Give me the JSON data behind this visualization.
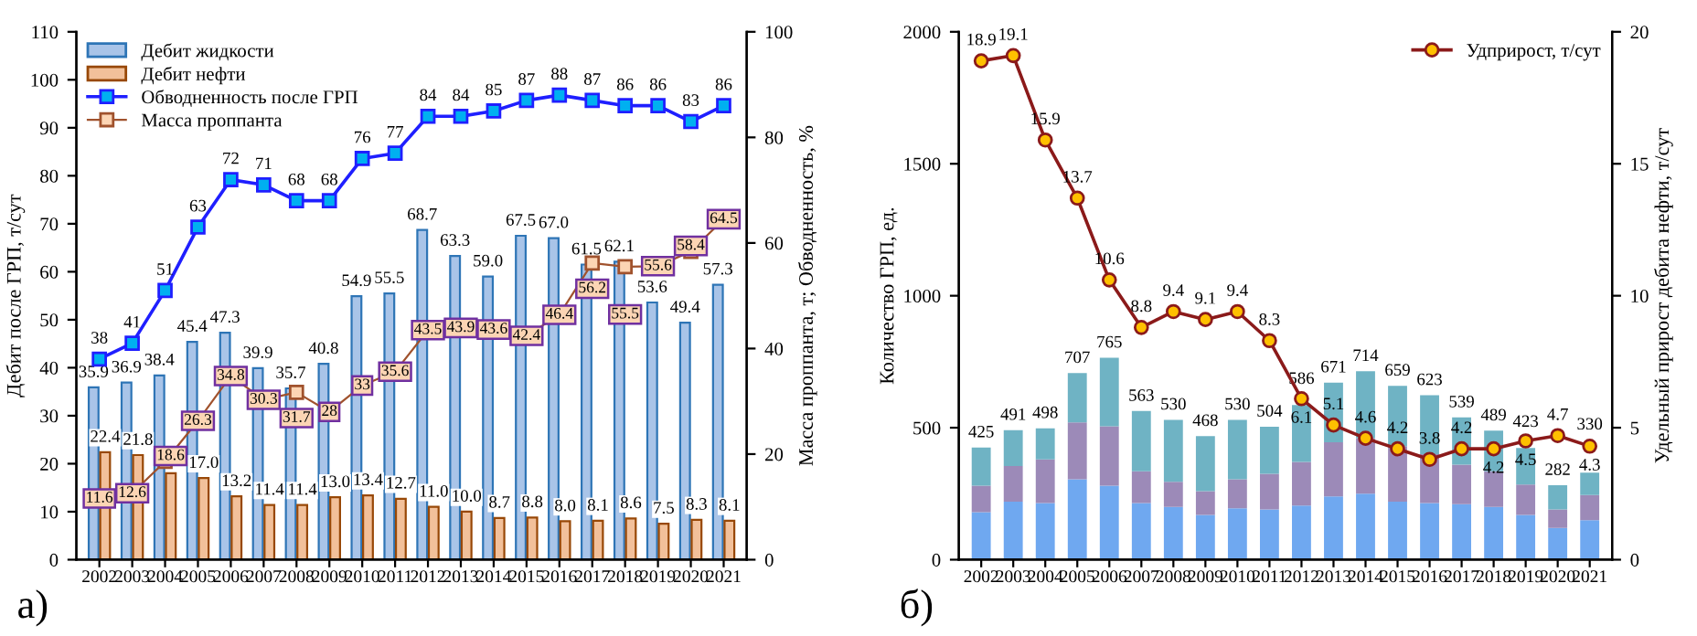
{
  "chart_data": [
    {
      "type": "bar",
      "ylabel": "Дебит после ГРП, т/сут",
      "y2label": "Масса проппанта, т; Обводненность, %",
      "categories": [
        "2002",
        "2003",
        "2004",
        "2005",
        "2006",
        "2007",
        "2008",
        "2009",
        "2010",
        "2011",
        "2012",
        "2013",
        "2014",
        "2015",
        "2016",
        "2017",
        "2018",
        "2019",
        "2020",
        "2021"
      ],
      "series": [
        {
          "name": "Дебит жидкости",
          "color": "#a9c4e8",
          "values": [
            35.9,
            36.9,
            38.4,
            45.4,
            47.3,
            39.9,
            35.7,
            40.8,
            54.9,
            55.5,
            68.7,
            63.3,
            59.0,
            67.5,
            67.0,
            61.5,
            62.1,
            53.6,
            49.4,
            57.3
          ],
          "value_labels": [
            "35.9",
            "36.9",
            "38.4",
            "45.4",
            "47.3",
            "39.9",
            "35.7",
            "40.8",
            "54.9",
            "55.5",
            "68.7",
            "63.3",
            "59.0",
            "67.5",
            "67.0",
            "61.5",
            "62.1",
            "53.6",
            "49.4",
            "57.3"
          ]
        },
        {
          "name": "Дебит нефти",
          "color": "#f2c09a",
          "values": [
            22.4,
            21.8,
            18,
            17.0,
            13.2,
            11.4,
            11.4,
            13.0,
            13.4,
            12.7,
            11.0,
            10.0,
            8.7,
            8.8,
            8.0,
            8.1,
            8.6,
            7.5,
            8.3,
            8.1
          ],
          "value_labels": [
            "22.4",
            "21.8",
            null,
            "17.0",
            "13.2",
            "11.4",
            "11.4",
            "13.0",
            "13.4",
            "12.7",
            "11.0",
            "10.0",
            "8.7",
            "8.8",
            "8.0",
            "8.1",
            "8.6",
            "7.5",
            "8.3",
            "8.1"
          ]
        },
        {
          "name": "Обводненность после ГРП",
          "type": "line",
          "axis": "y2",
          "color": "#1f1fff",
          "marker": "square",
          "values": [
            38,
            41,
            51,
            63,
            72,
            71,
            68,
            68,
            76,
            77,
            84,
            84,
            85,
            87,
            88,
            87,
            86,
            86,
            83,
            86
          ],
          "value_labels": [
            "38",
            "41",
            "51",
            "63",
            "72",
            "71",
            "68",
            "68",
            "76",
            "77",
            "84",
            "84",
            "85",
            "87",
            "88",
            "87",
            "86",
            "86",
            "83",
            "86"
          ]
        },
        {
          "name": "Масса проппанта",
          "type": "line",
          "axis": "y2",
          "color": "#a0522d",
          "marker": "square",
          "values": [
            11.6,
            12.6,
            18.6,
            26.3,
            34.8,
            30.3,
            31.7,
            28,
            33,
            35.6,
            43.5,
            43.9,
            43.6,
            42.4,
            46.4,
            56.2,
            55.5,
            55.6,
            58.4,
            64.5
          ],
          "value_labels": [
            "11.6",
            "12.6",
            "18.6",
            "26.3",
            "34.8",
            "30.3",
            "31.7",
            "28",
            "33",
            "35.6",
            "43.5",
            "43.9",
            "43.6",
            "42.4",
            "46.4",
            "56.2",
            "55.5",
            "55.6",
            "58.4",
            "64.5"
          ]
        }
      ],
      "ylim": [
        0,
        110
      ],
      "yticks": [
        0,
        10,
        20,
        30,
        40,
        50,
        60,
        70,
        80,
        90,
        100,
        110
      ],
      "y2lim": [
        0,
        100
      ],
      "y2ticks": [
        0,
        20,
        40,
        60,
        80,
        100
      ],
      "legend": "top left",
      "annotations": [
        "а)"
      ]
    },
    {
      "type": "bar",
      "ylabel": "Количество ГРП, ед.",
      "y2label": "Удельный прирост дебита нефти, т/сут",
      "stacked": true,
      "categories": [
        "2002",
        "2003",
        "2004",
        "2005",
        "2006",
        "2007",
        "2008",
        "2009",
        "2010",
        "2011",
        "2012",
        "2013",
        "2014",
        "2015",
        "2016",
        "2017",
        "2018",
        "2019",
        "2020",
        "2021"
      ],
      "series": [
        {
          "color": "#6fa8f0",
          "values": [
            180,
            220,
            215,
            305,
            280,
            215,
            200,
            170,
            195,
            190,
            205,
            240,
            250,
            220,
            215,
            210,
            200,
            170,
            120,
            150
          ]
        },
        {
          "color": "#9c8ab8",
          "values": [
            100,
            135,
            165,
            215,
            225,
            120,
            95,
            90,
            110,
            135,
            165,
            205,
            210,
            210,
            185,
            150,
            135,
            115,
            70,
            95
          ]
        },
        {
          "color": "#6fb3c4",
          "values": [
            145,
            136,
            118,
            187,
            260,
            228,
            235,
            208,
            225,
            179,
            216,
            226,
            254,
            229,
            223,
            179,
            154,
            138,
            92,
            85
          ]
        },
        {
          "name": "Удприрост, т/сут",
          "type": "line",
          "axis": "y2",
          "color": "#8b1a1a",
          "marker": "circle",
          "values": [
            18.9,
            19.1,
            15.9,
            13.7,
            10.6,
            8.8,
            9.4,
            9.1,
            9.4,
            8.3,
            6.1,
            5.1,
            4.6,
            4.2,
            3.8,
            4.2,
            4.2,
            4.5,
            4.7,
            4.3
          ],
          "value_labels": [
            "18.9",
            "19.1",
            "15.9",
            "13.7",
            "10.6",
            "8.8",
            "9.4",
            "9.1",
            "9.4",
            "8.3",
            "6.1",
            "5.1",
            "4.6",
            "4.2",
            "3.8",
            "4.2",
            "4.2",
            "4.5",
            "4.7",
            "4.3"
          ]
        }
      ],
      "totals": [
        "425",
        "491",
        "498",
        "707",
        "765",
        "563",
        "530",
        "468",
        "530",
        "504",
        "586",
        "671",
        "714",
        "659",
        "623",
        "539",
        "489",
        "423",
        "282",
        "330"
      ],
      "ylim": [
        0,
        2000
      ],
      "yticks": [
        0,
        500,
        1000,
        1500,
        2000
      ],
      "y2lim": [
        0,
        20
      ],
      "y2ticks": [
        0,
        5,
        10,
        15,
        20
      ],
      "legend": "top right",
      "annotations": [
        "б)"
      ]
    }
  ]
}
